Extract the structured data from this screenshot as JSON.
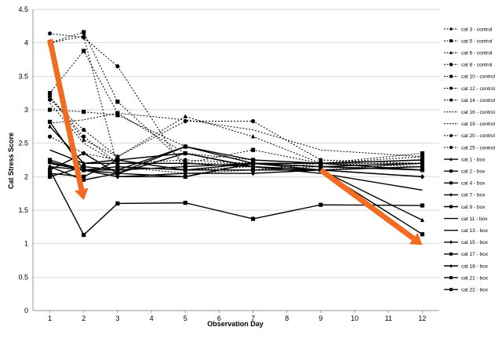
{
  "chart_data": {
    "type": "line",
    "title": "",
    "xlabel": "Observation Day",
    "ylabel": "Cat Stress Score",
    "xlim": [
      0.5,
      12.5
    ],
    "ylim": [
      0,
      4.5
    ],
    "x_ticks": [
      "1",
      "2",
      "3",
      "4",
      "5",
      "6",
      "7",
      "8",
      "9",
      "10",
      "11",
      "12"
    ],
    "y_ticks": [
      "0",
      "0.5",
      "1",
      "1.5",
      "2",
      "2.5",
      "3",
      "3.5",
      "4",
      "4.5"
    ],
    "grid": "horizontal",
    "legend_position": "right",
    "series": [
      {
        "name": "cat 3 - control",
        "group": "control",
        "marker": "diamond",
        "x": [
          1,
          2,
          3,
          5,
          7,
          9,
          12
        ],
        "y": [
          4.0,
          4.1,
          2.15,
          2.05,
          2.1,
          2.15,
          2.2
        ]
      },
      {
        "name": "cat 5 - control",
        "group": "control",
        "marker": "square",
        "x": [
          1,
          2,
          3,
          5,
          7,
          9,
          12
        ],
        "y": [
          4.0,
          4.16,
          3.12,
          2.2,
          2.4,
          2.2,
          2.3
        ]
      },
      {
        "name": "cat 6 - control",
        "group": "control",
        "marker": "triangle",
        "x": [
          1,
          2,
          3,
          5,
          7,
          9,
          12
        ],
        "y": [
          3.2,
          2.55,
          2.3,
          2.9,
          2.6,
          2.2,
          2.25
        ]
      },
      {
        "name": "cat 8 - control",
        "group": "control",
        "marker": "square",
        "x": [
          1,
          2,
          3,
          5,
          7,
          9,
          12
        ],
        "y": [
          3.25,
          3.88,
          2.95,
          2.35,
          2.25,
          2.2,
          2.35
        ]
      },
      {
        "name": "cat 10 - control",
        "group": "control",
        "marker": "square",
        "x": [
          1,
          2,
          3,
          5,
          7,
          9,
          12
        ],
        "y": [
          3.0,
          2.97,
          2.92,
          2.45,
          2.2,
          2.2,
          2.25
        ]
      },
      {
        "name": "cat 12 - control",
        "group": "control",
        "marker": "circle",
        "x": [
          1,
          2,
          3,
          5,
          7,
          9,
          12
        ],
        "y": [
          4.14,
          4.08,
          3.65,
          2.1,
          2.1,
          2.2,
          2.15
        ]
      },
      {
        "name": "cat 14 - control",
        "group": "control",
        "marker": "circle",
        "x": [
          1,
          2,
          3,
          5,
          7,
          9,
          12
        ],
        "y": [
          3.15,
          2.7,
          2.3,
          2.83,
          2.83,
          2.25,
          2.2
        ]
      },
      {
        "name": "cat 16 - control",
        "group": "control",
        "marker": "none",
        "x": [
          1,
          2,
          3,
          5,
          7,
          9,
          12
        ],
        "y": [
          2.8,
          2.85,
          2.95,
          2.85,
          2.7,
          2.4,
          2.3
        ]
      },
      {
        "name": "cat 19 - control",
        "group": "control",
        "marker": "none",
        "x": [
          1,
          2,
          3,
          5,
          7,
          9,
          12
        ],
        "y": [
          3.1,
          2.5,
          2.2,
          2.2,
          2.2,
          2.2,
          2.2
        ]
      },
      {
        "name": "cat 20 - control",
        "group": "control",
        "marker": "circle",
        "x": [
          1,
          2,
          3,
          5,
          7,
          9,
          12
        ],
        "y": [
          3.2,
          2.6,
          2.2,
          2.25,
          2.2,
          2.2,
          2.2
        ]
      },
      {
        "name": "cat 25 - control",
        "group": "control",
        "marker": "circle",
        "x": [
          1,
          2,
          3,
          5,
          7,
          9,
          12
        ],
        "y": [
          2.6,
          2.35,
          2.25,
          2.1,
          2.15,
          2.1,
          2.2
        ]
      },
      {
        "name": "cat 1 - box",
        "group": "box",
        "marker": "triangle",
        "x": [
          1,
          2,
          3,
          5,
          7,
          9,
          12
        ],
        "y": [
          2.75,
          2.2,
          2.2,
          2.2,
          2.15,
          2.1,
          1.35
        ]
      },
      {
        "name": "cat 2 - box",
        "group": "box",
        "marker": "square",
        "x": [
          1,
          2,
          3,
          5,
          7,
          9,
          12
        ],
        "y": [
          2.25,
          2.1,
          2.15,
          2.1,
          2.1,
          2.1,
          2.15
        ]
      },
      {
        "name": "cat 4 - box",
        "group": "box",
        "marker": "square",
        "x": [
          1,
          2,
          3,
          5,
          7,
          9,
          12
        ],
        "y": [
          2.82,
          2.1,
          2.1,
          2.15,
          2.2,
          2.15,
          2.1
        ]
      },
      {
        "name": "cat 7 - box",
        "group": "box",
        "marker": "diamond",
        "x": [
          1,
          2,
          3,
          5,
          7,
          9,
          12
        ],
        "y": [
          2.1,
          2.35,
          2.05,
          2.35,
          2.15,
          2.1,
          2.0
        ]
      },
      {
        "name": "cat 9 - box",
        "group": "box",
        "marker": "square",
        "x": [
          1,
          2,
          3,
          5,
          7,
          9,
          12
        ],
        "y": [
          2.1,
          1.13,
          1.6,
          1.61,
          1.37,
          1.58,
          1.57
        ]
      },
      {
        "name": "cat 11 - box",
        "group": "box",
        "marker": "none",
        "x": [
          1,
          2,
          3,
          5,
          7,
          9,
          12
        ],
        "y": [
          2.4,
          2.2,
          2.25,
          2.35,
          2.15,
          2.05,
          1.8
        ]
      },
      {
        "name": "cat 13 - box",
        "group": "box",
        "marker": "none",
        "x": [
          1,
          2,
          3,
          5,
          7,
          9,
          12
        ],
        "y": [
          2.2,
          2.1,
          2.0,
          2.0,
          2.2,
          2.15,
          2.1
        ]
      },
      {
        "name": "cat 15 - box",
        "group": "box",
        "marker": "diamond",
        "x": [
          1,
          2,
          3,
          5,
          7,
          9,
          12
        ],
        "y": [
          2.15,
          2.1,
          2.0,
          2.05,
          2.05,
          2.1,
          2.0
        ]
      },
      {
        "name": "cat 17 - box",
        "group": "box",
        "marker": "square",
        "x": [
          1,
          2,
          3,
          5,
          7,
          9,
          12
        ],
        "y": [
          2.22,
          2.1,
          2.05,
          2.0,
          2.2,
          2.1,
          1.14
        ]
      },
      {
        "name": "cat 18 - box",
        "group": "box",
        "marker": "triangle",
        "x": [
          1,
          2,
          3,
          5,
          7,
          9,
          12
        ],
        "y": [
          2.15,
          1.95,
          2.05,
          2.45,
          2.2,
          2.15,
          2.2
        ]
      },
      {
        "name": "cat 21 - box",
        "group": "box",
        "marker": "square",
        "x": [
          1,
          2,
          3,
          5,
          7,
          9,
          12
        ],
        "y": [
          2.0,
          2.15,
          2.1,
          2.45,
          2.25,
          2.2,
          2.1
        ]
      },
      {
        "name": "cat 22 - box",
        "group": "box",
        "marker": "square",
        "x": [
          1,
          2,
          3,
          5,
          7,
          9,
          12
        ],
        "y": [
          2.05,
          2.0,
          2.25,
          2.1,
          2.2,
          2.2,
          2.25
        ]
      }
    ],
    "annotations": [
      {
        "type": "arrow",
        "color": "#f26b22",
        "from": [
          1,
          4.05
        ],
        "to": [
          2,
          1.65
        ]
      },
      {
        "type": "arrow",
        "color": "#f26b22",
        "from": [
          9,
          2.1
        ],
        "to": [
          12,
          0.98
        ]
      }
    ]
  },
  "colors": {
    "series": "#000000",
    "gridline": "#c8c8c8",
    "arrow": "#f26b22"
  }
}
